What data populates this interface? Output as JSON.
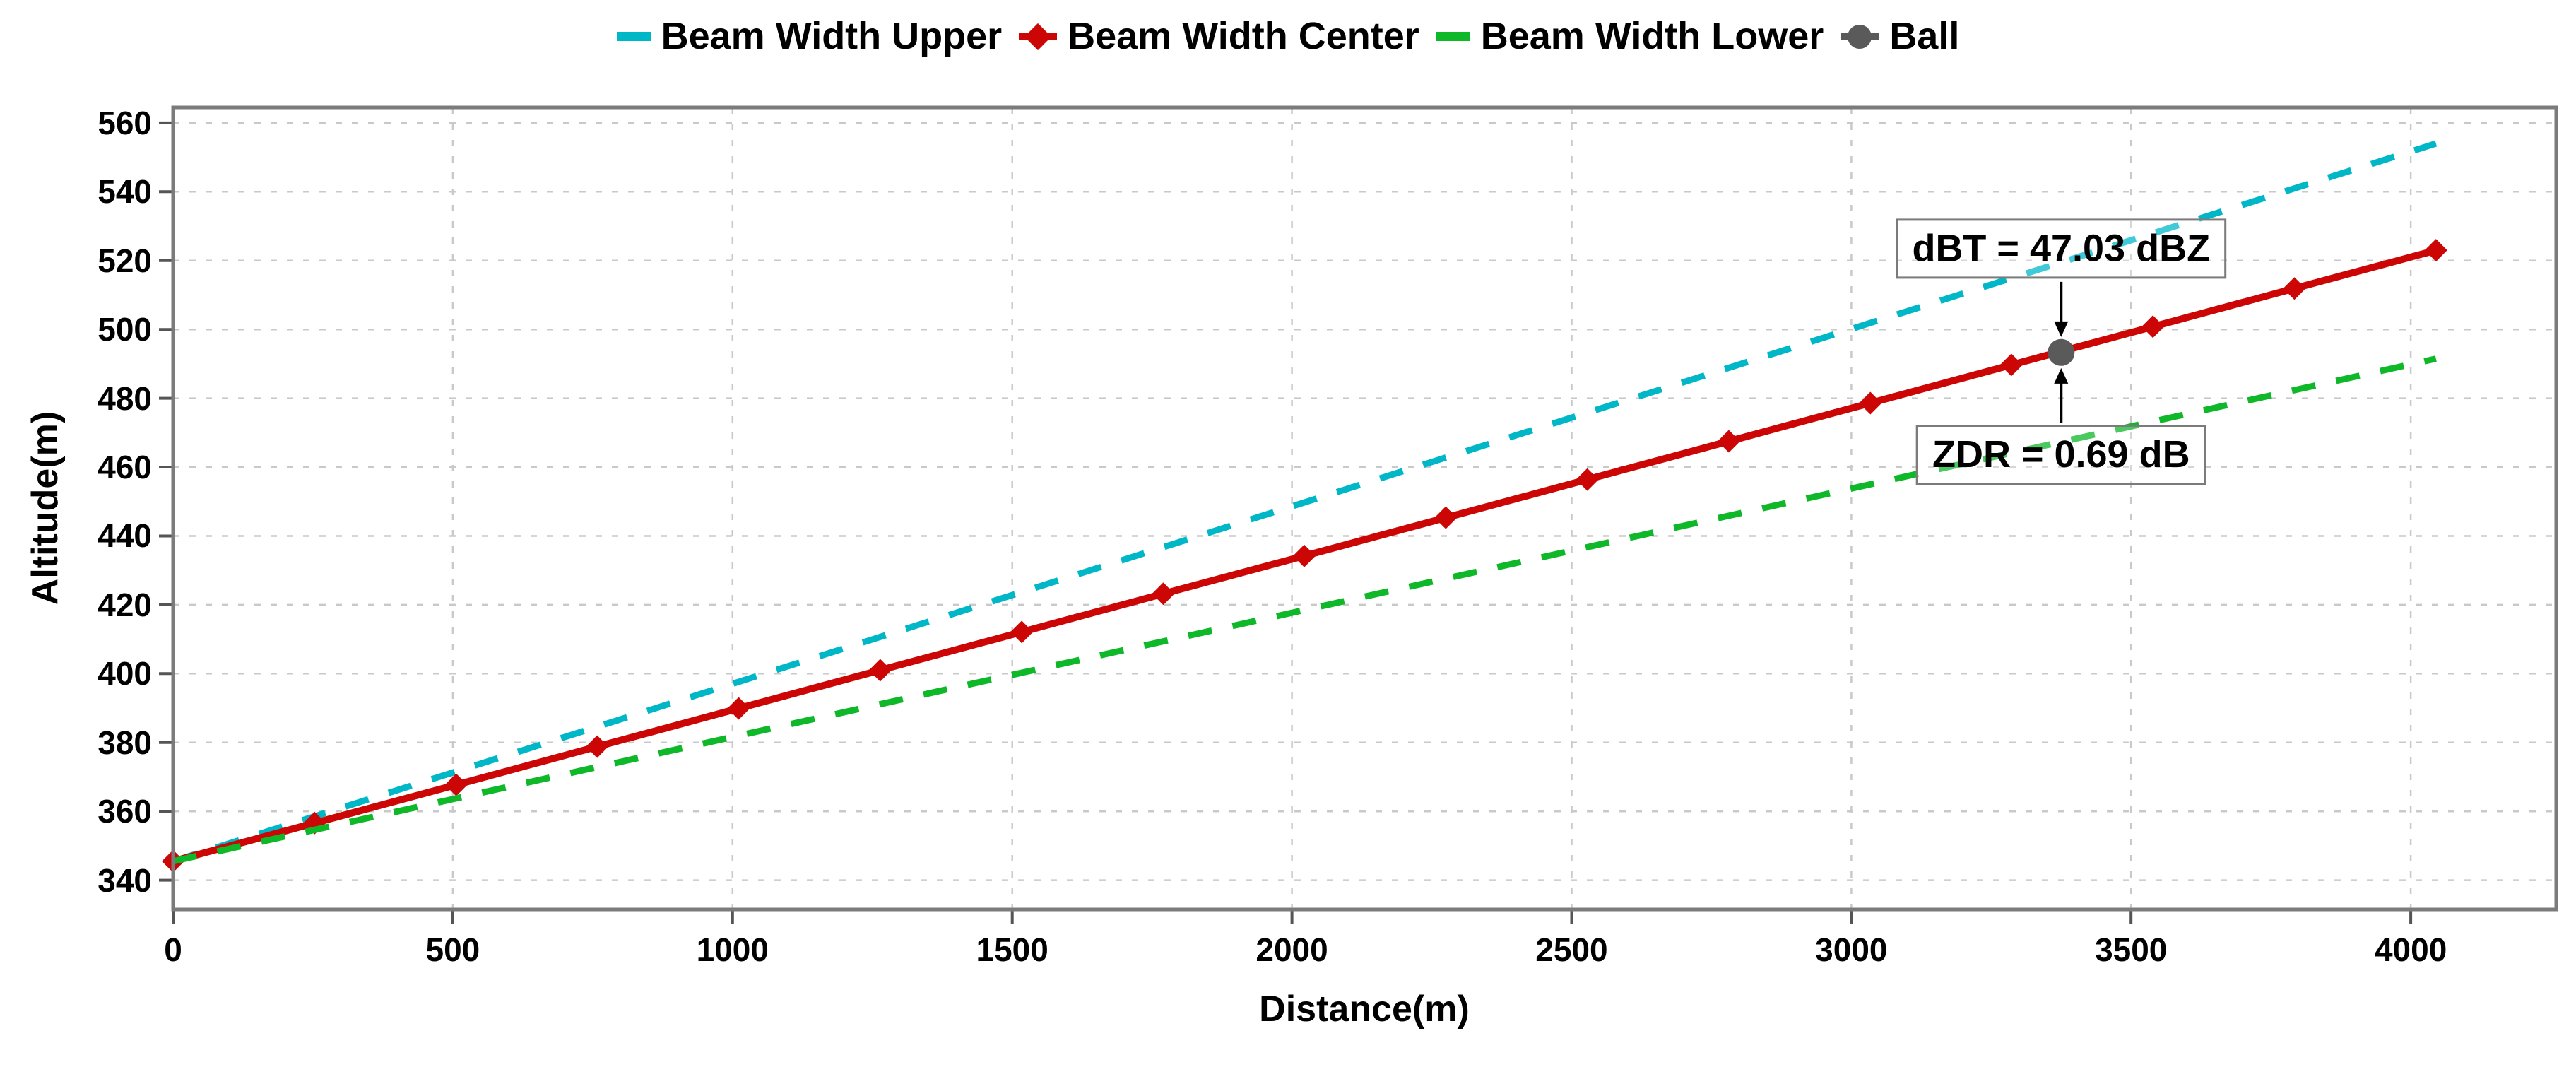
{
  "chart_data": {
    "type": "line",
    "title": "",
    "xlabel": "Distance(m)",
    "ylabel": "Altitude(m)",
    "xlim": [
      0,
      4260
    ],
    "ylim": [
      331.5,
      564.5
    ],
    "xticks": [
      0,
      500,
      1000,
      1500,
      2000,
      2500,
      3000,
      3500,
      4000
    ],
    "yticks": [
      340,
      360,
      380,
      400,
      420,
      440,
      460,
      480,
      500,
      520,
      540,
      560
    ],
    "grid": true,
    "legend_position": "top-center",
    "series": [
      {
        "name": "Beam Width Upper",
        "color": "#00b7c8",
        "line_style": "dashed",
        "marker": "none",
        "x": [
          0,
          4045
        ],
        "y": [
          345.5,
          554.0
        ]
      },
      {
        "name": "Beam Width Center",
        "color": "#cc0505",
        "line_style": "solid",
        "marker": "diamond",
        "x": [
          0,
          253,
          506,
          758,
          1011,
          1264,
          1517,
          1770,
          2022,
          2275,
          2528,
          2781,
          3034,
          3286,
          3539,
          3792,
          4045
        ],
        "y": [
          345.5,
          356.6,
          367.7,
          378.8,
          389.9,
          401.0,
          412.1,
          423.2,
          434.2,
          445.3,
          456.4,
          467.5,
          478.6,
          489.7,
          500.8,
          511.9,
          523.0
        ]
      },
      {
        "name": "Beam Width Lower",
        "color": "#0eb828",
        "line_style": "dashed",
        "marker": "none",
        "x": [
          0,
          4045
        ],
        "y": [
          345.5,
          491.5
        ]
      }
    ],
    "ball": {
      "name": "Ball",
      "color": "#5a5a5a",
      "x": 3375,
      "y": 493.3
    },
    "annotations": [
      {
        "text": "dBT = 47.03 dBZ",
        "anchor": "ball",
        "placement": "above"
      },
      {
        "text": "ZDR = 0.69 dB",
        "anchor": "ball",
        "placement": "below"
      }
    ],
    "grid_color": "#c9c9c9",
    "frame_color": "#7b7b7b",
    "tick_color": "#555555",
    "text_color": "#000000",
    "background": "#ffffff"
  }
}
